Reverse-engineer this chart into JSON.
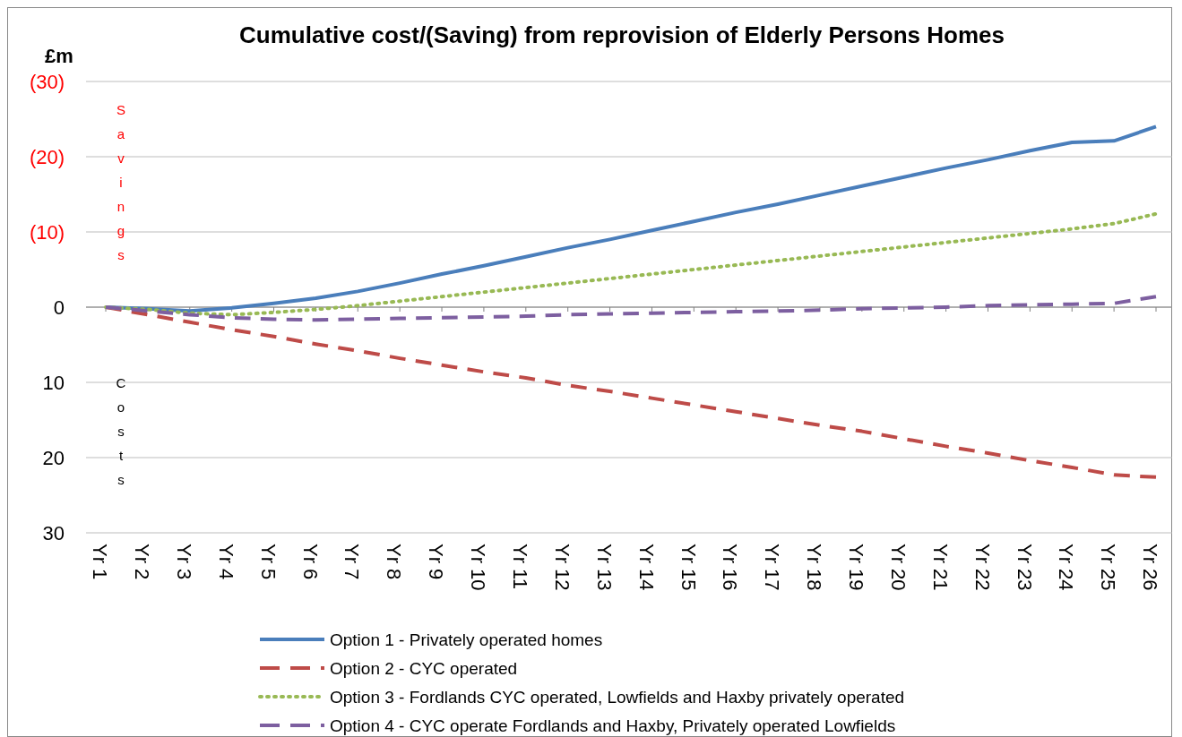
{
  "chart_data": {
    "type": "line",
    "title": "Cumulative cost/(Saving) from reprovision of Elderly Persons Homes",
    "ylabel": "£m",
    "annotations": [
      "Savings",
      "Costs"
    ],
    "categories": [
      "Yr 1",
      "Yr 2",
      "Yr 3",
      "Yr 4",
      "Yr 5",
      "Yr 6",
      "Yr 7",
      "Yr 8",
      "Yr 9",
      "Yr 10",
      "Yr 11",
      "Yr 12",
      "Yr 13",
      "Yr 14",
      "Yr 15",
      "Yr 16",
      "Yr 17",
      "Yr 18",
      "Yr 19",
      "Yr 20",
      "Yr 21",
      "Yr 22",
      "Yr 23",
      "Yr 24",
      "Yr 25",
      "Yr 26"
    ],
    "ylim": [
      30,
      -30
    ],
    "yticks": [
      {
        "value": -30,
        "label": "(30)"
      },
      {
        "value": -20,
        "label": "(20)"
      },
      {
        "value": -10,
        "label": "(10)"
      },
      0,
      10,
      20,
      30
    ],
    "grid": "y",
    "legend": "bottom",
    "marker": "none",
    "series": [
      {
        "name": "Option 1 - Privately operated homes",
        "color": "#4a7ebb",
        "line_style": "solid",
        "values": [
          0,
          0.2,
          0.5,
          0.1,
          -0.5,
          -1.2,
          -2.1,
          -3.2,
          -4.4,
          -5.5,
          -6.7,
          -7.9,
          -9.0,
          -10.2,
          -11.4,
          -12.6,
          -13.7,
          -14.9,
          -16.1,
          -17.3,
          -18.5,
          -19.6,
          -20.8,
          -21.9,
          -22.1,
          -24.0
        ]
      },
      {
        "name": "Option 2 - CYC operated",
        "color": "#be4b48",
        "line_style": "dashed",
        "values": [
          0,
          1.0,
          2.0,
          3.0,
          3.9,
          4.9,
          5.8,
          6.8,
          7.7,
          8.6,
          9.4,
          10.4,
          11.2,
          12.1,
          13.0,
          13.9,
          14.8,
          15.7,
          16.5,
          17.5,
          18.5,
          19.4,
          20.4,
          21.3,
          22.3,
          22.6
        ]
      },
      {
        "name": "Option 3 - Fordlands CYC operated, Lowfields and Haxby privately operated",
        "color": "#98b954",
        "line_style": "dotted",
        "values": [
          0,
          0.3,
          0.8,
          1.0,
          0.7,
          0.3,
          -0.2,
          -0.8,
          -1.4,
          -2.0,
          -2.6,
          -3.2,
          -3.8,
          -4.4,
          -5.0,
          -5.6,
          -6.2,
          -6.8,
          -7.4,
          -8.0,
          -8.6,
          -9.2,
          -9.8,
          -10.4,
          -11.1,
          -12.4
        ]
      },
      {
        "name": "Option 4 - CYC operate Fordlands and Haxby, Privately operated Lowfields",
        "color": "#7d5fa0",
        "line_style": "dashed",
        "values": [
          0,
          0.5,
          1.0,
          1.4,
          1.6,
          1.7,
          1.6,
          1.5,
          1.4,
          1.3,
          1.2,
          1.0,
          0.9,
          0.8,
          0.7,
          0.6,
          0.5,
          0.4,
          0.2,
          0.1,
          0,
          -0.2,
          -0.3,
          -0.4,
          -0.5,
          -1.4
        ]
      }
    ]
  }
}
